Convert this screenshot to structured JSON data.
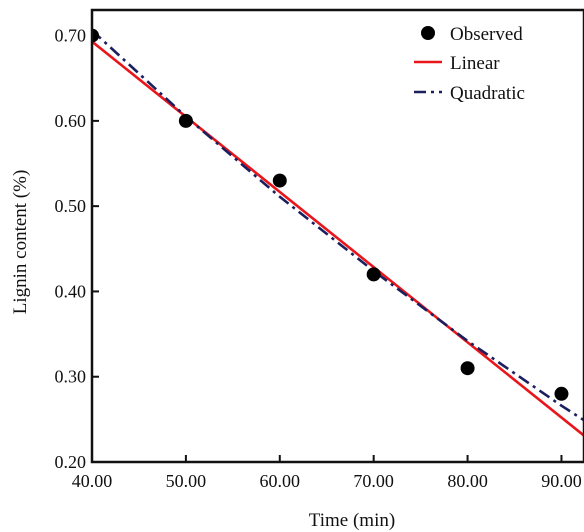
{
  "chart_data": {
    "type": "scatter",
    "title": "",
    "xlabel": "Time (min)",
    "ylabel": "Lignin content (%)",
    "xlim": [
      40,
      92.4
    ],
    "ylim": [
      0.2,
      0.73
    ],
    "x_ticks": [
      "40.00",
      "50.00",
      "60.00",
      "70.00",
      "80.00",
      "90.00"
    ],
    "y_ticks": [
      "0.20",
      "0.30",
      "0.40",
      "0.50",
      "0.60",
      "0.70"
    ],
    "legend_position": "top-right",
    "series": [
      {
        "name": "Observed",
        "kind": "points",
        "color": "#000000",
        "x": [
          40,
          50,
          60,
          70,
          80,
          90
        ],
        "y": [
          0.7,
          0.6,
          0.53,
          0.42,
          0.31,
          0.28
        ]
      },
      {
        "name": "Linear",
        "kind": "line",
        "color": "#e8161b",
        "x": [
          40,
          92.4
        ],
        "y": [
          0.693,
          0.231
        ]
      },
      {
        "name": "Quadratic",
        "kind": "dashdot",
        "color": "#1c1f5e",
        "x": [
          40,
          50,
          60,
          70,
          80,
          90,
          92.4
        ],
        "y": [
          0.706,
          0.605,
          0.511,
          0.424,
          0.342,
          0.266,
          0.249
        ]
      }
    ]
  }
}
